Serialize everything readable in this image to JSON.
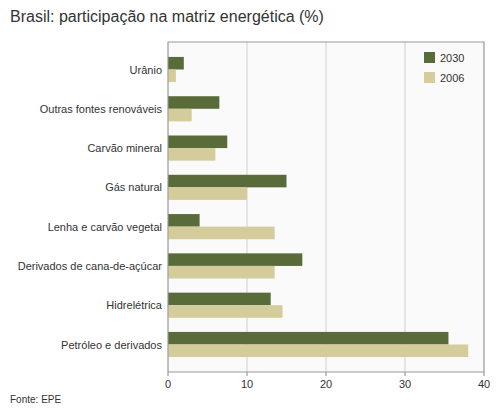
{
  "chart_data": {
    "type": "bar",
    "orientation": "horizontal",
    "title": "Brasil: participação na matriz energética (%)",
    "annotations": [
      "Fonte: EPE"
    ],
    "categories": [
      "Petróleo e derivados",
      "Hidrelétrica",
      "Derivados de cana-de-açúcar",
      "Lenha e carvão vegetal",
      "Gás natural",
      "Carvão mineral",
      "Outras fontes renováveis",
      "Urânio"
    ],
    "series": [
      {
        "name": "2030",
        "color": "#5a6b3a",
        "values": [
          35.5,
          13.0,
          17.0,
          4.0,
          15.0,
          7.5,
          6.5,
          2.0
        ]
      },
      {
        "name": "2006",
        "color": "#d4cc9a",
        "values": [
          38.0,
          14.5,
          13.5,
          13.5,
          10.0,
          6.0,
          3.0,
          1.0
        ]
      }
    ],
    "xlim": [
      0,
      40
    ],
    "xticks": [
      0,
      10,
      20,
      30,
      40
    ],
    "grid": true,
    "legend": "upper right"
  }
}
